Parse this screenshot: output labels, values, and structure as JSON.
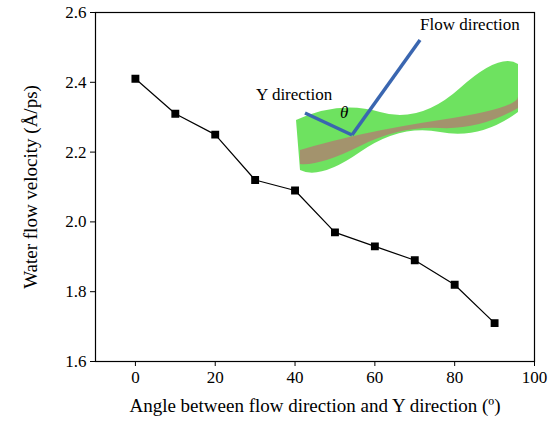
{
  "chart_data": {
    "type": "line",
    "x_label": "Angle between flow direction and Y direction (º)",
    "y_label": "Water flow velocity (Å/ps)",
    "x": [
      0,
      10,
      20,
      30,
      40,
      50,
      60,
      70,
      80,
      90
    ],
    "values": [
      2.41,
      2.31,
      2.25,
      2.12,
      2.09,
      1.97,
      1.93,
      1.89,
      1.82,
      1.71
    ],
    "color": "#000000",
    "marker": "square",
    "line_style": "solid",
    "xlim": [
      -10,
      100
    ],
    "xticks": [
      0,
      20,
      40,
      60,
      80,
      100
    ],
    "ylim": [
      1.6,
      2.6
    ],
    "yticks": [
      1.6,
      1.8,
      {
        "value": 2,
        "label": "2.0"
      },
      2.2,
      2.4,
      2.6
    ],
    "grid": false,
    "annotations": [
      "Flow direction",
      "Y direction",
      "θ"
    ]
  }
}
